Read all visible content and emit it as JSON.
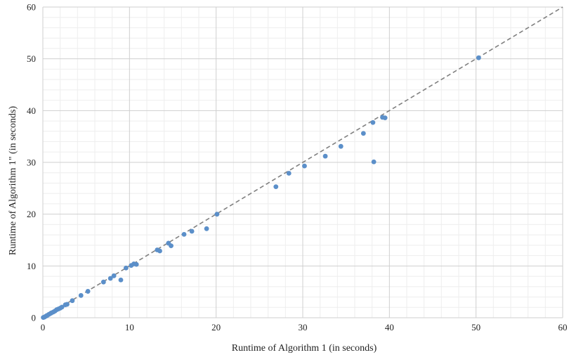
{
  "chart_data": {
    "type": "scatter",
    "xlabel": "Runtime of Algorithm 1 (in seconds)",
    "ylabel": "Runtime of Algorithm 1\" (in seconds)",
    "xlim": [
      0,
      60
    ],
    "ylim": [
      0,
      60
    ],
    "x_ticks": [
      0,
      10,
      20,
      30,
      40,
      50,
      60
    ],
    "y_ticks": [
      0,
      10,
      20,
      30,
      40,
      50,
      60
    ],
    "minor_step": 2,
    "grid": true,
    "reference_line": {
      "from": [
        0,
        0
      ],
      "to": [
        60,
        60
      ],
      "style": "dashed"
    },
    "point_color": "#5b8fc9",
    "line_color": "#808080",
    "points": [
      {
        "x": 0.05,
        "y": 0.05
      },
      {
        "x": 0.15,
        "y": 0.1
      },
      {
        "x": 0.25,
        "y": 0.2
      },
      {
        "x": 0.4,
        "y": 0.35
      },
      {
        "x": 0.5,
        "y": 0.45
      },
      {
        "x": 0.7,
        "y": 0.65
      },
      {
        "x": 0.9,
        "y": 0.85
      },
      {
        "x": 1.0,
        "y": 0.95
      },
      {
        "x": 1.2,
        "y": 1.1
      },
      {
        "x": 1.4,
        "y": 1.3
      },
      {
        "x": 1.6,
        "y": 1.55
      },
      {
        "x": 1.8,
        "y": 1.7
      },
      {
        "x": 2.0,
        "y": 1.85
      },
      {
        "x": 2.2,
        "y": 2.05
      },
      {
        "x": 2.6,
        "y": 2.5
      },
      {
        "x": 2.8,
        "y": 2.6
      },
      {
        "x": 3.4,
        "y": 3.3
      },
      {
        "x": 4.4,
        "y": 4.3
      },
      {
        "x": 5.2,
        "y": 5.1
      },
      {
        "x": 7.0,
        "y": 6.9
      },
      {
        "x": 7.8,
        "y": 7.6
      },
      {
        "x": 8.2,
        "y": 8.1
      },
      {
        "x": 9.0,
        "y": 7.3
      },
      {
        "x": 9.6,
        "y": 9.6
      },
      {
        "x": 10.2,
        "y": 10.1
      },
      {
        "x": 10.5,
        "y": 10.4
      },
      {
        "x": 10.8,
        "y": 10.3
      },
      {
        "x": 13.2,
        "y": 13.1
      },
      {
        "x": 13.5,
        "y": 12.9
      },
      {
        "x": 14.5,
        "y": 14.4
      },
      {
        "x": 14.8,
        "y": 13.9
      },
      {
        "x": 16.3,
        "y": 16.1
      },
      {
        "x": 17.2,
        "y": 16.7
      },
      {
        "x": 18.9,
        "y": 17.2
      },
      {
        "x": 20.1,
        "y": 20.0
      },
      {
        "x": 26.9,
        "y": 25.3
      },
      {
        "x": 28.4,
        "y": 27.9
      },
      {
        "x": 30.2,
        "y": 29.3
      },
      {
        "x": 32.6,
        "y": 31.2
      },
      {
        "x": 34.4,
        "y": 33.1
      },
      {
        "x": 37.0,
        "y": 35.6
      },
      {
        "x": 38.1,
        "y": 37.7
      },
      {
        "x": 38.2,
        "y": 30.1
      },
      {
        "x": 39.2,
        "y": 38.7
      },
      {
        "x": 39.5,
        "y": 38.6
      },
      {
        "x": 50.3,
        "y": 50.2
      }
    ]
  }
}
